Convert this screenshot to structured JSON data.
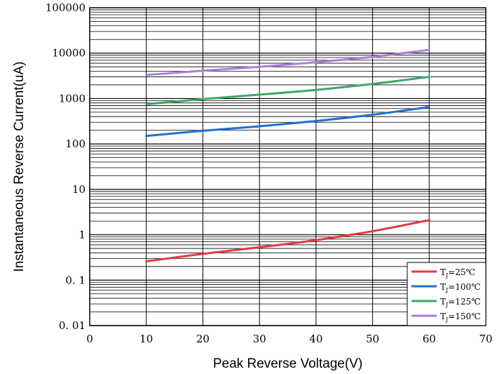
{
  "chart_data": {
    "type": "line",
    "title": "",
    "xlabel": "Peak Reverse Voltage(V)",
    "ylabel": "Instantaneous Reverse Current(uA)",
    "x_scale": "linear",
    "y_scale": "log",
    "xlim": [
      0,
      70
    ],
    "ylim": [
      0.01,
      100000
    ],
    "x_ticks": [
      0,
      10,
      20,
      30,
      40,
      50,
      60,
      70
    ],
    "x_tick_labels": [
      "0",
      "10",
      "20",
      "30",
      "40",
      "50",
      "60",
      "70"
    ],
    "y_ticks": [
      0.01,
      0.1,
      1,
      10,
      100,
      1000,
      10000,
      100000
    ],
    "y_tick_labels": [
      "0. 01",
      "0. 1",
      "1",
      "10",
      "100",
      "1000",
      "10000",
      "100000"
    ],
    "grid": true,
    "legend_position": "bottom-right",
    "x": [
      10,
      20,
      30,
      40,
      50,
      60
    ],
    "series": [
      {
        "name": "TJ=25℃",
        "legend_main": "T",
        "legend_sub": "J",
        "legend_rest": "=25℃",
        "color": "#e8383d",
        "values": [
          0.26,
          0.38,
          0.53,
          0.76,
          1.2,
          2.1
        ]
      },
      {
        "name": "TJ=100℃",
        "legend_main": "T",
        "legend_sub": "J",
        "legend_rest": "=100℃",
        "color": "#1f6fd0",
        "values": [
          150,
          195,
          245,
          320,
          440,
          650
        ]
      },
      {
        "name": "TJ=125℃",
        "legend_main": "T",
        "legend_sub": "J",
        "legend_rest": "=125℃",
        "color": "#3aa96a",
        "values": [
          750,
          970,
          1220,
          1550,
          2100,
          3000
        ]
      },
      {
        "name": "TJ=150℃",
        "legend_main": "T",
        "legend_sub": "J",
        "legend_rest": "=150℃",
        "color": "#a87fd8",
        "values": [
          3300,
          4100,
          5000,
          6300,
          8300,
          11800
        ]
      }
    ]
  }
}
